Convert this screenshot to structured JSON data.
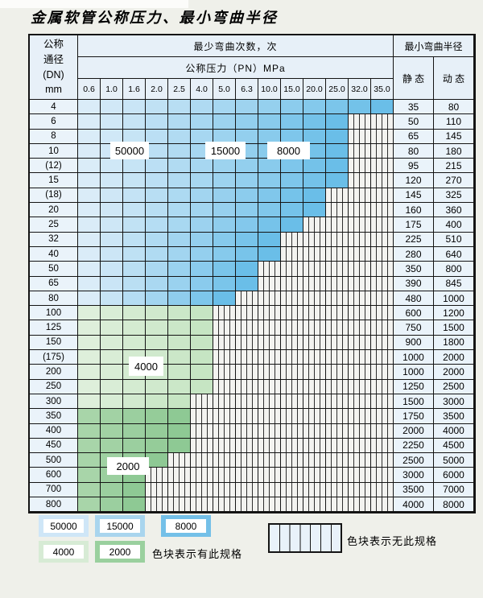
{
  "title": "金属软管公称压力、最小弯曲半径",
  "table": {
    "corner_header": [
      "公称",
      "通径",
      "(DN)",
      "mm"
    ],
    "bend_cycles_header": "最少弯曲次数，次",
    "pressure_header": "公称压力（PN）MPa",
    "radius_header": "最小弯曲半径",
    "static_header": "静 态",
    "dynamic_header": "动 态",
    "pn_columns": [
      "0.6",
      "1.0",
      "1.6",
      "2.0",
      "2.5",
      "4.0",
      "5.0",
      "6.3",
      "10.0",
      "15.0",
      "20.0",
      "25.0",
      "32.0",
      "35.0"
    ],
    "cycle_region_labels": [
      "50000",
      "15000",
      "8000",
      "4000",
      "2000"
    ],
    "rows": [
      {
        "dn": "4",
        "group": "blue",
        "colored_cols": 14,
        "colored_through_pn": "35.0",
        "static": "35",
        "dynamic": "80"
      },
      {
        "dn": "6",
        "group": "blue",
        "colored_cols": 12,
        "colored_through_pn": "25.0",
        "static": "50",
        "dynamic": "110"
      },
      {
        "dn": "8",
        "group": "blue",
        "colored_cols": 12,
        "colored_through_pn": "25.0",
        "static": "65",
        "dynamic": "145"
      },
      {
        "dn": "10",
        "group": "blue",
        "colored_cols": 12,
        "colored_through_pn": "25.0",
        "static": "80",
        "dynamic": "180"
      },
      {
        "dn": "(12)",
        "group": "blue",
        "colored_cols": 12,
        "colored_through_pn": "25.0",
        "static": "95",
        "dynamic": "215"
      },
      {
        "dn": "15",
        "group": "blue",
        "colored_cols": 12,
        "colored_through_pn": "25.0",
        "static": "120",
        "dynamic": "270"
      },
      {
        "dn": "(18)",
        "group": "blue",
        "colored_cols": 11,
        "colored_through_pn": "20.0",
        "static": "145",
        "dynamic": "325"
      },
      {
        "dn": "20",
        "group": "blue",
        "colored_cols": 11,
        "colored_through_pn": "20.0",
        "static": "160",
        "dynamic": "360"
      },
      {
        "dn": "25",
        "group": "blue",
        "colored_cols": 10,
        "colored_through_pn": "15.0",
        "static": "175",
        "dynamic": "400"
      },
      {
        "dn": "32",
        "group": "blue",
        "colored_cols": 9,
        "colored_through_pn": "10.0",
        "static": "225",
        "dynamic": "510"
      },
      {
        "dn": "40",
        "group": "blue",
        "colored_cols": 9,
        "colored_through_pn": "10.0",
        "static": "280",
        "dynamic": "640"
      },
      {
        "dn": "50",
        "group": "blue",
        "colored_cols": 8,
        "colored_through_pn": "6.3",
        "static": "350",
        "dynamic": "800"
      },
      {
        "dn": "65",
        "group": "blue",
        "colored_cols": 8,
        "colored_through_pn": "6.3",
        "static": "390",
        "dynamic": "845"
      },
      {
        "dn": "80",
        "group": "blue",
        "colored_cols": 7,
        "colored_through_pn": "5.0",
        "static": "480",
        "dynamic": "1000"
      },
      {
        "dn": "100",
        "group": "green4000",
        "colored_cols": 6,
        "colored_through_pn": "4.0",
        "static": "600",
        "dynamic": "1200"
      },
      {
        "dn": "125",
        "group": "green4000",
        "colored_cols": 6,
        "colored_through_pn": "4.0",
        "static": "750",
        "dynamic": "1500"
      },
      {
        "dn": "150",
        "group": "green4000",
        "colored_cols": 6,
        "colored_through_pn": "4.0",
        "static": "900",
        "dynamic": "1800"
      },
      {
        "dn": "(175)",
        "group": "green4000",
        "colored_cols": 6,
        "colored_through_pn": "4.0",
        "static": "1000",
        "dynamic": "2000"
      },
      {
        "dn": "200",
        "group": "green4000",
        "colored_cols": 6,
        "colored_through_pn": "4.0",
        "static": "1000",
        "dynamic": "2000"
      },
      {
        "dn": "250",
        "group": "green4000",
        "colored_cols": 6,
        "colored_through_pn": "4.0",
        "static": "1250",
        "dynamic": "2500"
      },
      {
        "dn": "300",
        "group": "green4000",
        "colored_cols": 5,
        "colored_through_pn": "2.5",
        "static": "1500",
        "dynamic": "3000"
      },
      {
        "dn": "350",
        "group": "green2000",
        "colored_cols": 5,
        "colored_through_pn": "2.5",
        "static": "1750",
        "dynamic": "3500"
      },
      {
        "dn": "400",
        "group": "green2000",
        "colored_cols": 5,
        "colored_through_pn": "2.5",
        "static": "2000",
        "dynamic": "4000"
      },
      {
        "dn": "450",
        "group": "green2000",
        "colored_cols": 5,
        "colored_through_pn": "2.5",
        "static": "2250",
        "dynamic": "4500"
      },
      {
        "dn": "500",
        "group": "green2000",
        "colored_cols": 4,
        "colored_through_pn": "2.0",
        "static": "2500",
        "dynamic": "5000"
      },
      {
        "dn": "600",
        "group": "green2000",
        "colored_cols": 3,
        "colored_through_pn": "1.6",
        "static": "3000",
        "dynamic": "6000"
      },
      {
        "dn": "700",
        "group": "green2000",
        "colored_cols": 3,
        "colored_through_pn": "1.6",
        "static": "3500",
        "dynamic": "7000"
      },
      {
        "dn": "800",
        "group": "green2000",
        "colored_cols": 3,
        "colored_through_pn": "1.6",
        "static": "4000",
        "dynamic": "8000"
      }
    ]
  },
  "legend": {
    "items": [
      {
        "label": "50000",
        "color": "#cfe6f7"
      },
      {
        "label": "15000",
        "color": "#a9d5ee"
      },
      {
        "label": "8000",
        "color": "#74c0e8"
      },
      {
        "label": "4000",
        "color": "#d7ebd5"
      },
      {
        "label": "2000",
        "color": "#9ad09e"
      }
    ],
    "has_spec_note": "色块表示有此规格",
    "no_spec_note": "色块表示无此规格"
  },
  "colors": {
    "blue_light": "#daecf8",
    "blue_dark": "#6abee8",
    "green4000_light": "#deefdb",
    "green4000_dark": "#c6e5c3",
    "green2000_light": "#a8d5a9",
    "green2000_dark": "#8ec994",
    "grid_line": "#141414",
    "page_bg": "#eff0ea",
    "cell_bg": "#eaf3fa"
  }
}
